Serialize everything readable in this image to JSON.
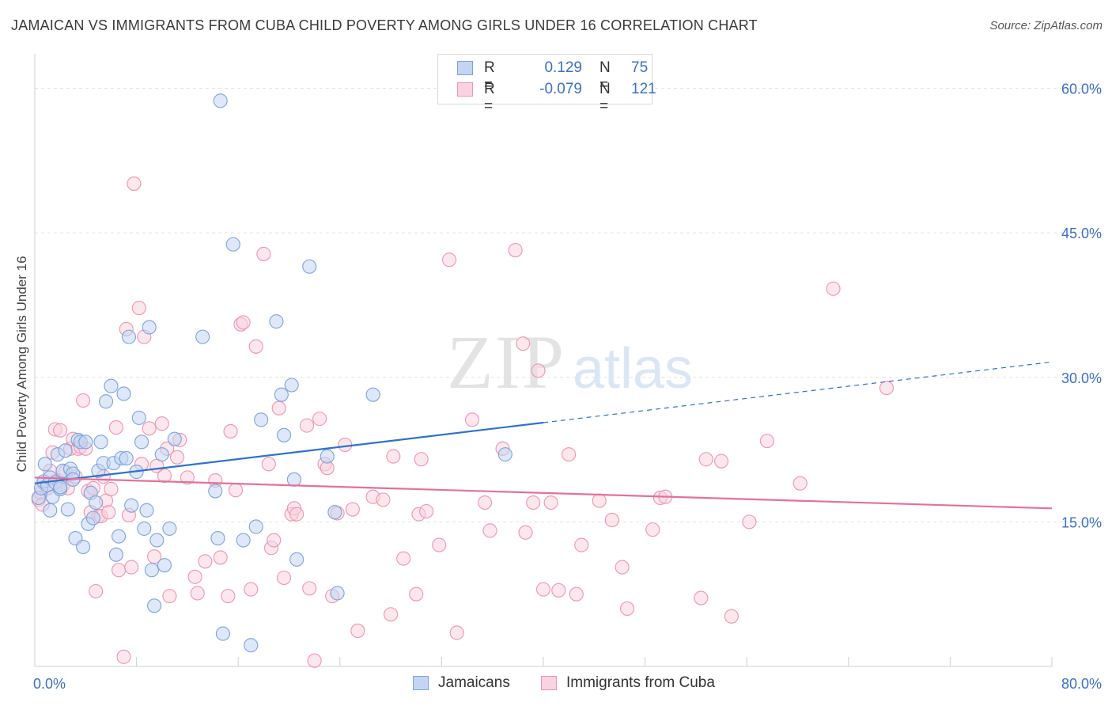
{
  "title": "JAMAICAN VS IMMIGRANTS FROM CUBA CHILD POVERTY AMONG GIRLS UNDER 16 CORRELATION CHART",
  "source": "Source: ZipAtlas.com",
  "watermark": {
    "zip": "ZIP",
    "atlas": "atlas"
  },
  "legend": {
    "rows": [
      {
        "r_label": "R =",
        "r_value": "0.129",
        "n_label": "N =",
        "n_value": "75",
        "color": "#9bbdea",
        "border": "#7aa3dc"
      },
      {
        "r_label": "R =",
        "r_value": "-0.079",
        "n_label": "N =",
        "n_value": "121",
        "color": "#f5b8cb",
        "border": "#ee94b0"
      }
    ]
  },
  "bottom_legend": [
    {
      "label": "Jamaicans",
      "color": "#c2d6f3",
      "border": "#7aa3dc"
    },
    {
      "label": "Immigrants from Cuba",
      "color": "#f9d3df",
      "border": "#ee94b0"
    }
  ],
  "chart_data": {
    "type": "scatter",
    "title": "JAMAICAN VS IMMIGRANTS FROM CUBA CHILD POVERTY AMONG GIRLS UNDER 16 CORRELATION CHART",
    "xlabel": "",
    "ylabel": "Child Poverty Among Girls Under 16",
    "xlim": [
      0,
      80
    ],
    "ylim": [
      0,
      63
    ],
    "x_tick_labels": [
      "0.0%",
      "80.0%"
    ],
    "y_ticks": [
      15,
      30,
      45,
      60
    ],
    "y_tick_labels": [
      "15.0%",
      "30.0%",
      "45.0%",
      "60.0%"
    ],
    "grid": true,
    "series": [
      {
        "name": "Jamaicans",
        "color": "#7aa3dc",
        "fill": "#c2d6f3",
        "trend": {
          "x0": 0,
          "y0": 19.0,
          "x1": 40,
          "y1": 25.3,
          "dashed_to_x": 80,
          "dashed_to_y": 31.6,
          "color": "#2f72c9"
        },
        "points": [
          [
            0.3,
            17.5
          ],
          [
            0.5,
            18.5
          ],
          [
            0.7,
            19.2
          ],
          [
            0.8,
            21
          ],
          [
            1.0,
            18.8
          ],
          [
            1.2,
            19.6
          ],
          [
            1.4,
            17.6
          ],
          [
            1.6,
            19.1
          ],
          [
            1.8,
            22
          ],
          [
            2.0,
            18.4
          ],
          [
            2.2,
            20.3
          ],
          [
            2.4,
            22.4
          ],
          [
            2.6,
            16.3
          ],
          [
            2.8,
            20.5
          ],
          [
            3.0,
            20.0
          ],
          [
            3.2,
            13.3
          ],
          [
            3.4,
            23.5
          ],
          [
            3.6,
            23.3
          ],
          [
            3.8,
            12.4
          ],
          [
            4.0,
            23.3
          ],
          [
            4.2,
            14.8
          ],
          [
            4.4,
            18.0
          ],
          [
            4.6,
            15.4
          ],
          [
            4.8,
            17.0
          ],
          [
            5.0,
            20.3
          ],
          [
            5.2,
            23.3
          ],
          [
            5.4,
            21.1
          ],
          [
            5.6,
            27.5
          ],
          [
            6.0,
            29.1
          ],
          [
            6.2,
            21.1
          ],
          [
            6.4,
            11.6
          ],
          [
            6.6,
            13.5
          ],
          [
            6.8,
            21.6
          ],
          [
            7.0,
            28.3
          ],
          [
            7.2,
            21.6
          ],
          [
            7.4,
            34.2
          ],
          [
            7.6,
            16.7
          ],
          [
            8.0,
            20.2
          ],
          [
            8.2,
            25.8
          ],
          [
            8.4,
            23.3
          ],
          [
            8.6,
            14.3
          ],
          [
            8.8,
            16.2
          ],
          [
            9.0,
            35.2
          ],
          [
            9.2,
            10.0
          ],
          [
            9.4,
            6.3
          ],
          [
            9.6,
            13.1
          ],
          [
            10.0,
            22.0
          ],
          [
            10.2,
            10.5
          ],
          [
            10.6,
            14.3
          ],
          [
            11.0,
            23.6
          ],
          [
            13.2,
            34.2
          ],
          [
            14.2,
            18.2
          ],
          [
            14.4,
            13.3
          ],
          [
            14.6,
            58.7
          ],
          [
            14.8,
            3.4
          ],
          [
            15.6,
            43.8
          ],
          [
            16.4,
            13.1
          ],
          [
            17.0,
            2.2
          ],
          [
            17.4,
            14.5
          ],
          [
            17.8,
            25.6
          ],
          [
            19.0,
            35.8
          ],
          [
            19.4,
            28.2
          ],
          [
            19.6,
            24.0
          ],
          [
            20.2,
            29.2
          ],
          [
            20.4,
            19.4
          ],
          [
            20.6,
            11.1
          ],
          [
            21.6,
            41.5
          ],
          [
            23.0,
            21.8
          ],
          [
            23.6,
            16.0
          ],
          [
            23.8,
            7.6
          ],
          [
            26.6,
            28.2
          ],
          [
            37.0,
            22.0
          ],
          [
            1.2,
            16.2
          ],
          [
            2.0,
            18.6
          ],
          [
            3.0,
            19.4
          ]
        ]
      },
      {
        "name": "Immigrants from Cuba",
        "color": "#ee94b0",
        "fill": "#f9d3df",
        "trend": {
          "x0": 0,
          "y0": 19.6,
          "x1": 80,
          "y1": 16.4,
          "color": "#e5709b"
        },
        "points": [
          [
            0.3,
            17.3
          ],
          [
            0.5,
            18.0
          ],
          [
            0.7,
            19.0
          ],
          [
            1.0,
            18.5
          ],
          [
            1.2,
            20.3
          ],
          [
            1.4,
            22.2
          ],
          [
            1.6,
            24.6
          ],
          [
            1.8,
            19.3
          ],
          [
            2.0,
            24.5
          ],
          [
            2.2,
            18.8
          ],
          [
            2.4,
            20.2
          ],
          [
            2.6,
            18.5
          ],
          [
            2.8,
            22.6
          ],
          [
            3.0,
            23.6
          ],
          [
            3.2,
            19.7
          ],
          [
            3.4,
            22.6
          ],
          [
            3.6,
            22.8
          ],
          [
            3.8,
            27.6
          ],
          [
            4.0,
            22.6
          ],
          [
            4.2,
            18.2
          ],
          [
            4.4,
            16.0
          ],
          [
            4.6,
            18.5
          ],
          [
            4.8,
            7.8
          ],
          [
            5.0,
            15.6
          ],
          [
            5.2,
            15.6
          ],
          [
            5.4,
            19.7
          ],
          [
            5.6,
            17.2
          ],
          [
            5.8,
            16.0
          ],
          [
            6.0,
            18.4
          ],
          [
            6.4,
            24.8
          ],
          [
            6.6,
            10.0
          ],
          [
            7.0,
            1.0
          ],
          [
            7.2,
            35.0
          ],
          [
            7.4,
            15.7
          ],
          [
            7.6,
            10.3
          ],
          [
            7.8,
            50.1
          ],
          [
            8.2,
            37.2
          ],
          [
            8.4,
            21.0
          ],
          [
            8.6,
            34.2
          ],
          [
            9.0,
            24.7
          ],
          [
            9.4,
            11.4
          ],
          [
            9.6,
            20.8
          ],
          [
            10.0,
            25.2
          ],
          [
            10.2,
            19.8
          ],
          [
            10.4,
            22.6
          ],
          [
            10.6,
            7.3
          ],
          [
            11.2,
            21.7
          ],
          [
            11.4,
            23.5
          ],
          [
            12.0,
            19.6
          ],
          [
            12.6,
            9.3
          ],
          [
            12.8,
            7.6
          ],
          [
            13.4,
            10.9
          ],
          [
            14.2,
            19.3
          ],
          [
            14.6,
            11.3
          ],
          [
            15.2,
            7.3
          ],
          [
            15.4,
            24.4
          ],
          [
            15.8,
            18.3
          ],
          [
            16.2,
            35.5
          ],
          [
            16.4,
            35.7
          ],
          [
            17.0,
            8.0
          ],
          [
            17.4,
            33.2
          ],
          [
            18.0,
            42.8
          ],
          [
            18.4,
            21.0
          ],
          [
            18.6,
            12.3
          ],
          [
            18.8,
            13.1
          ],
          [
            19.2,
            26.8
          ],
          [
            19.6,
            9.2
          ],
          [
            20.2,
            15.8
          ],
          [
            20.4,
            16.4
          ],
          [
            20.6,
            15.8
          ],
          [
            21.4,
            25.0
          ],
          [
            21.6,
            8.1
          ],
          [
            22.0,
            0.6
          ],
          [
            22.4,
            25.7
          ],
          [
            22.8,
            21.0
          ],
          [
            23.0,
            20.6
          ],
          [
            23.4,
            7.3
          ],
          [
            23.8,
            15.9
          ],
          [
            24.4,
            23.0
          ],
          [
            25.0,
            16.3
          ],
          [
            25.4,
            3.7
          ],
          [
            26.6,
            17.6
          ],
          [
            27.4,
            17.3
          ],
          [
            28.0,
            5.4
          ],
          [
            28.2,
            21.8
          ],
          [
            29.0,
            11.2
          ],
          [
            30.0,
            7.5
          ],
          [
            30.2,
            15.8
          ],
          [
            30.4,
            21.5
          ],
          [
            30.8,
            16.1
          ],
          [
            31.8,
            12.6
          ],
          [
            32.6,
            42.2
          ],
          [
            33.2,
            3.5
          ],
          [
            34.4,
            25.6
          ],
          [
            35.4,
            17.0
          ],
          [
            35.8,
            14.1
          ],
          [
            36.8,
            22.6
          ],
          [
            37.8,
            43.2
          ],
          [
            38.4,
            33.5
          ],
          [
            38.6,
            13.9
          ],
          [
            39.2,
            17.0
          ],
          [
            39.6,
            30.7
          ],
          [
            40.0,
            8.0
          ],
          [
            40.6,
            17.0
          ],
          [
            41.2,
            7.9
          ],
          [
            42.0,
            22.0
          ],
          [
            42.6,
            7.5
          ],
          [
            43.0,
            12.6
          ],
          [
            44.4,
            17.2
          ],
          [
            45.4,
            15.2
          ],
          [
            46.2,
            10.3
          ],
          [
            46.6,
            6.0
          ],
          [
            48.6,
            14.2
          ],
          [
            49.2,
            17.5
          ],
          [
            49.6,
            17.6
          ],
          [
            52.4,
            7.1
          ],
          [
            52.8,
            21.5
          ],
          [
            54.0,
            21.3
          ],
          [
            54.8,
            5.2
          ],
          [
            56.2,
            15.0
          ],
          [
            57.6,
            23.4
          ],
          [
            60.2,
            19.0
          ],
          [
            62.8,
            39.2
          ],
          [
            67.0,
            28.9
          ],
          [
            0.6,
            16.8
          ]
        ]
      }
    ]
  }
}
